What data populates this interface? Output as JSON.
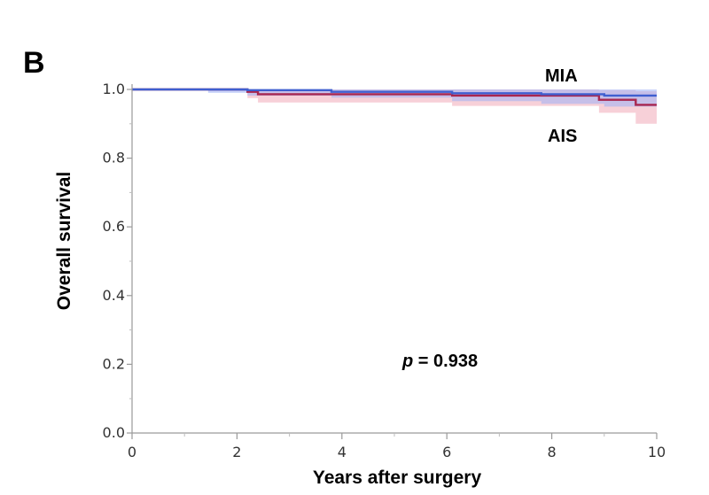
{
  "chart_data": {
    "type": "line",
    "panel_label": "B",
    "xlabel": "Years after surgery",
    "ylabel": "Overall survival",
    "xlim": [
      0,
      10
    ],
    "ylim": [
      0,
      1.0
    ],
    "x_ticks": [
      0,
      2,
      4,
      6,
      8,
      10
    ],
    "y_ticks": [
      0.0,
      0.2,
      0.4,
      0.6,
      0.8,
      1.0
    ],
    "x_tick_labels": [
      "0",
      "2",
      "4",
      "6",
      "8",
      "10"
    ],
    "y_tick_labels": [
      "0.0",
      "0.2",
      "0.4",
      "0.6",
      "0.8",
      "1.0"
    ],
    "annotation": {
      "italic": "p",
      "text": " = 0.938"
    },
    "series": [
      {
        "name": "MIA",
        "color": "#3f5fd0",
        "band_color": "#9fb0f5",
        "steps": [
          [
            0,
            1.0
          ],
          [
            1.45,
            1.0
          ],
          [
            2.2,
            0.998
          ],
          [
            3.8,
            0.993
          ],
          [
            6.1,
            0.989
          ],
          [
            7.8,
            0.986
          ],
          [
            9.0,
            0.982
          ],
          [
            10,
            0.982
          ]
        ],
        "lower": [
          [
            0,
            0.999
          ],
          [
            1.45,
            0.99
          ],
          [
            2.2,
            0.982
          ],
          [
            3.8,
            0.976
          ],
          [
            6.1,
            0.966
          ],
          [
            7.8,
            0.958
          ],
          [
            9.0,
            0.95
          ],
          [
            10,
            0.95
          ]
        ],
        "upper": [
          [
            0,
            1.0
          ],
          [
            10,
            1.0
          ]
        ]
      },
      {
        "name": "AIS",
        "color": "#a8264f",
        "band_color": "#f3b7c3",
        "steps": [
          [
            0,
            1.0
          ],
          [
            2.2,
            0.993
          ],
          [
            2.4,
            0.986
          ],
          [
            6.1,
            0.982
          ],
          [
            8.9,
            0.97
          ],
          [
            9.6,
            0.955
          ],
          [
            10,
            0.955
          ]
        ],
        "lower": [
          [
            0,
            0.999
          ],
          [
            2.2,
            0.975
          ],
          [
            2.4,
            0.962
          ],
          [
            6.1,
            0.952
          ],
          [
            8.9,
            0.932
          ],
          [
            9.6,
            0.9
          ],
          [
            10,
            0.9
          ]
        ],
        "upper": [
          [
            0,
            1.0
          ],
          [
            2.2,
            1.0
          ],
          [
            8.9,
            0.998
          ],
          [
            9.6,
            0.995
          ],
          [
            10,
            0.995
          ]
        ]
      }
    ]
  }
}
